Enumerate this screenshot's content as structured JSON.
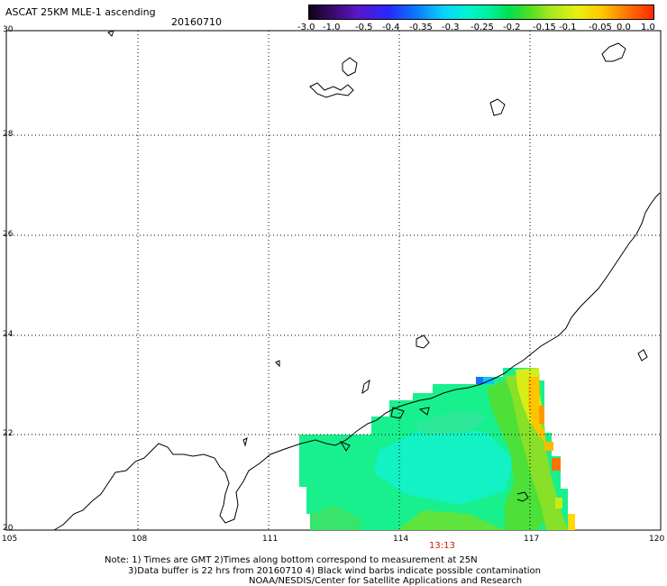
{
  "header": {
    "title": "ASCAT 25KM MLE-1 ascending",
    "date": "20160710"
  },
  "colorbar": {
    "ticks": [
      "-3.0",
      "-1.0",
      "-0.5",
      "-0.4",
      "-0.35",
      "-0.3",
      "-0.25",
      "-0.2",
      "-0.15",
      "-0.1",
      "-0.05",
      "0.0",
      "1.0"
    ],
    "colors": [
      "#120016",
      "#2828ff",
      "#0ad2ff",
      "#00f0a0",
      "#4ce020",
      "#e8f010",
      "#ff7800",
      "#ff2a00"
    ]
  },
  "axes": {
    "lat_ticks": [
      "30",
      "28",
      "26",
      "24",
      "22",
      "20"
    ],
    "lon_ticks": [
      "105",
      "108",
      "111",
      "114",
      "117",
      "120"
    ],
    "lat_range": [
      20,
      30
    ],
    "lon_range": [
      105,
      120
    ],
    "grid": true,
    "grid_style": "dotted"
  },
  "pass_time": "13:13",
  "notes": {
    "line1": "Note: 1) Times are GMT 2)Times along bottom correspond to measurement at 25N",
    "line2": "3)Data buffer is 22 hrs from 20160710 4) Black wind barbs indicate possible contamination",
    "line3": "NOAA/NESDIS/Center for Satellite Applications and Research"
  }
}
